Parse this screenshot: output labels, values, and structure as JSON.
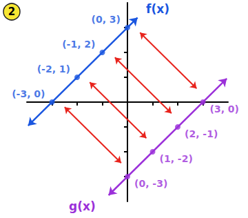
{
  "badge": "2",
  "chart_data": {
    "type": "line",
    "series": [
      {
        "name": "f(x)",
        "color": "#1a56e0",
        "marker": "circle",
        "x": [
          -3,
          -2,
          -1,
          0
        ],
        "values": [
          0,
          1,
          2,
          3
        ],
        "point_labels": [
          "(-3, 0)",
          "(-2, 1)",
          "(-1, 2)",
          "(0, 3)"
        ],
        "ends": [
          [
            -3.95,
            -0.95
          ],
          [
            0.4,
            3.4
          ]
        ]
      },
      {
        "name": "g(x)",
        "color": "#9b30d9",
        "marker": "circle",
        "x": [
          0,
          1,
          2,
          3
        ],
        "values": [
          -3,
          -2,
          -1,
          0
        ],
        "point_labels": [
          "(0, -3)",
          "(1, -2)",
          "(2, -1)",
          "(3, 0)"
        ],
        "ends": [
          [
            -0.75,
            -3.75
          ],
          [
            3.95,
            0.95
          ]
        ]
      }
    ],
    "reflections": {
      "color": "#e8231c",
      "pairs": [
        [
          [
            -2.5,
            -0.2
          ],
          [
            -0.25,
            -2.45
          ]
        ],
        [
          [
            -1.5,
            0.8
          ],
          [
            0.75,
            -1.45
          ]
        ],
        [
          [
            -0.5,
            1.8
          ],
          [
            1.75,
            -0.45
          ]
        ],
        [
          [
            0.5,
            2.8
          ],
          [
            2.75,
            0.55
          ]
        ]
      ]
    },
    "xlim": [
      -4,
      4
    ],
    "ylim": [
      -4,
      4
    ],
    "xticks": [
      -3,
      -2,
      -1,
      0,
      1,
      2,
      3
    ],
    "yticks": [
      -3,
      -2,
      -1,
      0,
      1,
      2,
      3
    ],
    "grid": false,
    "tick_labels": false
  }
}
